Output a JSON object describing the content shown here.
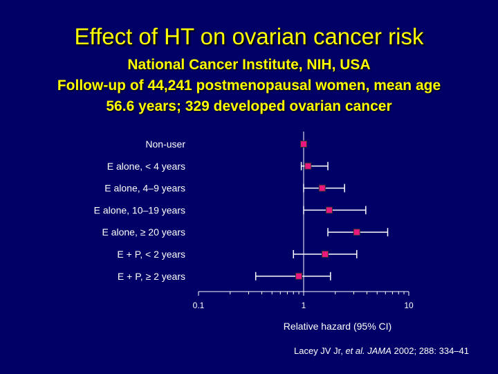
{
  "title": "Effect of HT on ovarian cancer risk",
  "subtitle_lines": [
    "National Cancer Institute, NIH, USA",
    "Follow-up of 44,241 postmenopausal women, mean age",
    "56.6 years; 329 developed ovarian cancer"
  ],
  "chart_data": {
    "type": "forest",
    "xscale": "log",
    "xlim": [
      0.1,
      10
    ],
    "xticks": [
      "0.1",
      "1",
      "10"
    ],
    "xlabel": "Relative hazard (95% CI)",
    "reference_line": 1,
    "rows": [
      {
        "label": "Non-user",
        "estimate": 1.0,
        "lower": null,
        "upper": null
      },
      {
        "label": "E alone, < 4 years",
        "estimate": 1.1,
        "lower": 0.95,
        "upper": 1.7
      },
      {
        "label": "E alone, 4–9 years",
        "estimate": 1.5,
        "lower": 1.0,
        "upper": 2.45
      },
      {
        "label": "E alone, 10–19 years",
        "estimate": 1.75,
        "lower": 1.0,
        "upper": 3.9
      },
      {
        "label": "E alone, ≥ 20 years",
        "estimate": 3.2,
        "lower": 1.7,
        "upper": 6.3
      },
      {
        "label": "E + P, < 2 years",
        "estimate": 1.6,
        "lower": 0.8,
        "upper": 3.2
      },
      {
        "label": "E + P, ≥ 2 years",
        "estimate": 0.9,
        "lower": 0.35,
        "upper": 1.8
      }
    ],
    "colors": {
      "marker": "#e8187c",
      "marker_edge": "#333333",
      "line": "#ffffff"
    }
  },
  "reference": {
    "authors": "Lacey JV Jr,",
    "etal": "et al.",
    "journal": "JAMA",
    "citation": "2002; 288: 334–41"
  }
}
